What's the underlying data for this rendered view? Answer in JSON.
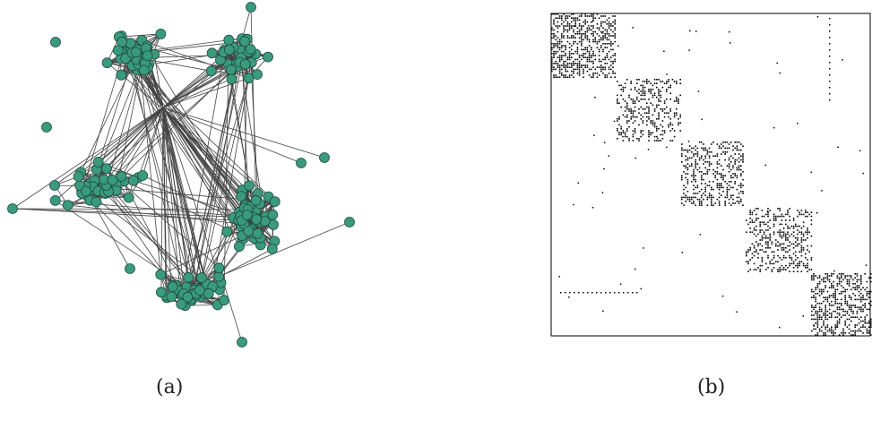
{
  "figure": {
    "panel_a": {
      "caption": "(a)",
      "node_color": "#3a9a7e",
      "node_stroke": "#1f4d3f",
      "edge_color": "#444444"
    },
    "panel_b": {
      "caption": "(b)",
      "frame_color": "#000000",
      "dot_color": "#000000",
      "block_count": 5
    }
  }
}
